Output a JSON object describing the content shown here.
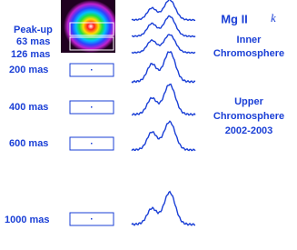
{
  "labels": {
    "peak_up": "Peak-up",
    "rows": [
      "63 mas",
      "126 mas",
      "200 mas",
      "400 mas",
      "600 mas",
      "1000 mas"
    ]
  },
  "title": {
    "ion": "Mg II",
    "line": "k"
  },
  "inner": [
    "Inner",
    "Chromosphere"
  ],
  "upper": [
    "Upper",
    "Chromosphere",
    "2002-2003"
  ]
}
